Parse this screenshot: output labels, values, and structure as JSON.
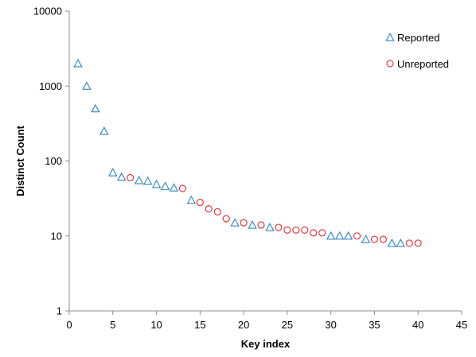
{
  "chart_data": {
    "type": "scatter",
    "title": "",
    "xlabel": "Key index",
    "ylabel": "Distinct Count",
    "xlim": [
      0,
      45
    ],
    "xticks": [
      0,
      5,
      10,
      15,
      20,
      25,
      30,
      35,
      40,
      45
    ],
    "ylim": [
      1,
      10000
    ],
    "yscale": "log",
    "yticks": [
      1,
      10,
      100,
      1000,
      10000
    ],
    "grid": false,
    "legend_position": "top-right",
    "series": [
      {
        "name": "Reported",
        "marker": "triangle",
        "color": "#2e86c1",
        "points": [
          [
            1,
            2000
          ],
          [
            2,
            1000
          ],
          [
            3,
            500
          ],
          [
            4,
            250
          ],
          [
            5,
            70
          ],
          [
            6,
            61
          ],
          [
            8,
            55
          ],
          [
            9,
            54
          ],
          [
            10,
            49
          ],
          [
            11,
            46
          ],
          [
            12,
            44
          ],
          [
            14,
            30
          ],
          [
            19,
            15
          ],
          [
            21,
            14
          ],
          [
            23,
            13
          ],
          [
            30,
            10
          ],
          [
            31,
            10
          ],
          [
            32,
            10
          ],
          [
            34,
            9
          ],
          [
            37,
            8
          ],
          [
            38,
            8
          ]
        ]
      },
      {
        "name": "Unreported",
        "marker": "circle",
        "color": "#e8262b",
        "points": [
          [
            7,
            60
          ],
          [
            13,
            43
          ],
          [
            15,
            28
          ],
          [
            16,
            23
          ],
          [
            17,
            21
          ],
          [
            18,
            17
          ],
          [
            20,
            15
          ],
          [
            22,
            14
          ],
          [
            24,
            13
          ],
          [
            25,
            12
          ],
          [
            26,
            12
          ],
          [
            27,
            12
          ],
          [
            28,
            11
          ],
          [
            29,
            11
          ],
          [
            33,
            10
          ],
          [
            35,
            9
          ],
          [
            36,
            9
          ],
          [
            39,
            8
          ],
          [
            40,
            8
          ]
        ]
      }
    ]
  }
}
